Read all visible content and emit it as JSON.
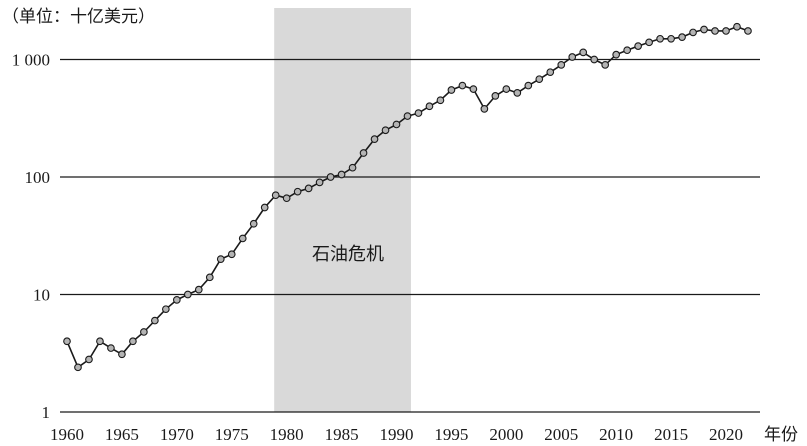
{
  "chart_data": {
    "type": "line",
    "ylabel": "（单位：十亿美元）",
    "xlabel": "年份",
    "annotation": "石油危机",
    "highlight_range": [
      1979,
      1991
    ],
    "y_scale": "log",
    "ylim": [
      1,
      2000
    ],
    "xlim": [
      1959,
      2024
    ],
    "x_ticks": [
      1960,
      1965,
      1970,
      1975,
      1980,
      1985,
      1990,
      1995,
      2000,
      2005,
      2010,
      2015,
      2020
    ],
    "x_tick_labels": [
      "1960",
      "1965",
      "1970",
      "1975",
      "1980",
      "1985",
      "1990",
      "1995",
      "2000",
      "2005",
      "2010",
      "2015",
      "2020"
    ],
    "y_ticks": [
      1,
      10,
      100,
      1000
    ],
    "y_tick_labels": [
      "1",
      "10",
      "100",
      "1 000"
    ],
    "grid": "horizontal",
    "line_color": "#1a1a1a",
    "marker_color": "#b4b4b4",
    "band_color": "#d9d9d9",
    "x": [
      1960,
      1961,
      1962,
      1963,
      1964,
      1965,
      1966,
      1967,
      1968,
      1969,
      1970,
      1971,
      1972,
      1973,
      1974,
      1975,
      1976,
      1977,
      1978,
      1979,
      1980,
      1981,
      1982,
      1983,
      1984,
      1985,
      1986,
      1987,
      1988,
      1989,
      1990,
      1991,
      1992,
      1993,
      1994,
      1995,
      1996,
      1997,
      1998,
      1999,
      2000,
      2001,
      2002,
      2003,
      2004,
      2005,
      2006,
      2007,
      2008,
      2009,
      2010,
      2011,
      2012,
      2013,
      2014,
      2015,
      2016,
      2017,
      2018,
      2019,
      2020,
      2021,
      2022
    ],
    "values": [
      4.0,
      2.4,
      2.8,
      4.0,
      3.5,
      3.1,
      4.0,
      4.8,
      6.0,
      7.5,
      9.0,
      10,
      11,
      14,
      20,
      22,
      30,
      40,
      55,
      70,
      66,
      75,
      80,
      90,
      100,
      105,
      120,
      160,
      210,
      250,
      280,
      330,
      350,
      400,
      450,
      550,
      600,
      560,
      380,
      490,
      560,
      520,
      600,
      680,
      780,
      900,
      1050,
      1150,
      1000,
      900,
      1100,
      1200,
      1300,
      1400,
      1500,
      1500,
      1550,
      1700,
      1800,
      1750,
      1750,
      1900,
      1750
    ]
  }
}
